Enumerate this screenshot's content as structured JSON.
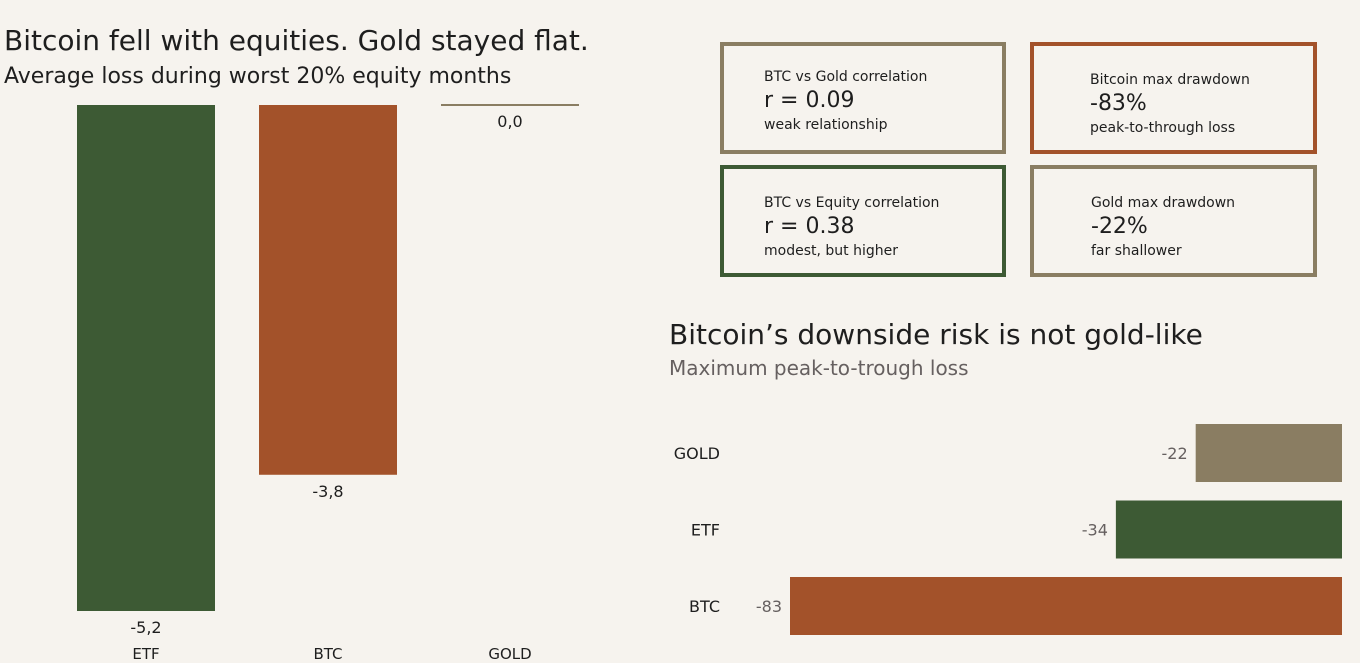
{
  "colors": {
    "background": "#f6f3ee",
    "etf": "#3d5a34",
    "btc": "#a3522a",
    "gold": "#8a7d62",
    "text": "#1e1e1e",
    "muted": "#666060"
  },
  "left": {
    "title": "Bitcoin fell with equities. Gold stayed flat.",
    "subtitle": "Average loss during worst 20% equity months"
  },
  "right": {
    "title": "Bitcoin’s downside risk is not gold-like",
    "subtitle": "Maximum peak-to-trough loss"
  },
  "cards": [
    {
      "label": "BTC vs Gold correlation",
      "value": "r = 0.09",
      "note": "weak relationship",
      "border": "#8a7d62"
    },
    {
      "label": "Bitcoin max drawdown",
      "value": "-83%",
      "note": "peak-to-through loss",
      "border": "#a3522a"
    },
    {
      "label": "BTC vs Equity correlation",
      "value": "r = 0.38",
      "note": "modest, but higher",
      "border": "#3d5a34"
    },
    {
      "label": "Gold max drawdown",
      "value": "-22%",
      "note": "far shallower",
      "border": "#8a7d62"
    }
  ],
  "chart_data": [
    {
      "type": "bar",
      "title": "Bitcoin fell with equities. Gold stayed flat.",
      "subtitle": "Average loss during worst 20% equity months",
      "categories": [
        "ETF",
        "BTC",
        "GOLD"
      ],
      "values": [
        -5.2,
        -3.8,
        0.0
      ],
      "value_labels": [
        "-5,2",
        "-3,8",
        "0,0"
      ],
      "colors": [
        "#3d5a34",
        "#a3522a",
        "#8a7d62"
      ],
      "ylim": [
        -5.2,
        0
      ],
      "orientation": "vertical",
      "grid": false
    },
    {
      "type": "bar",
      "title": "Bitcoin’s downside risk is not gold-like",
      "subtitle": "Maximum peak-to-trough loss",
      "categories": [
        "GOLD",
        "ETF",
        "BTC"
      ],
      "values": [
        -22,
        -34,
        -83
      ],
      "value_labels": [
        "-22",
        "-34",
        "-83"
      ],
      "colors": [
        "#8a7d62",
        "#3d5a34",
        "#a3522a"
      ],
      "xlim": [
        -83,
        0
      ],
      "orientation": "horizontal",
      "grid": false
    }
  ]
}
